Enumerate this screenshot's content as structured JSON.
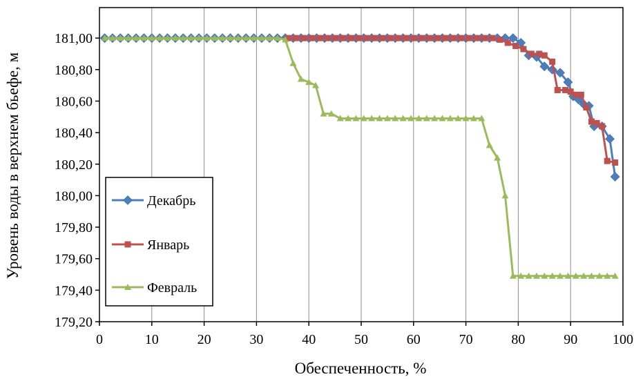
{
  "chart_data": {
    "type": "line",
    "title": "",
    "xlabel": "Обеспеченность, %",
    "ylabel": "Уровень воды в верхнем бьефе, м",
    "xlim": [
      0,
      100
    ],
    "ylim": [
      179.2,
      181.1
    ],
    "x_ticks": [
      "0",
      "10",
      "20",
      "30",
      "40",
      "50",
      "60",
      "70",
      "80",
      "90",
      "100"
    ],
    "y_ticks": [
      "179,20",
      "179,40",
      "179,60",
      "179,80",
      "180,00",
      "180,20",
      "180,40",
      "180,60",
      "180,80",
      "181,00"
    ],
    "grid": "vertical",
    "legend_position": "left-bottom",
    "series": [
      {
        "name": "Декабрь",
        "color": "#4a7ebf",
        "marker": "diamond",
        "points": [
          [
            1,
            181
          ],
          [
            2.5,
            181
          ],
          [
            4,
            181
          ],
          [
            5.5,
            181
          ],
          [
            7,
            181
          ],
          [
            8.5,
            181
          ],
          [
            10,
            181
          ],
          [
            11.5,
            181
          ],
          [
            13,
            181
          ],
          [
            14.5,
            181
          ],
          [
            16,
            181
          ],
          [
            17.5,
            181
          ],
          [
            19,
            181
          ],
          [
            20.5,
            181
          ],
          [
            22,
            181
          ],
          [
            23.5,
            181
          ],
          [
            25,
            181
          ],
          [
            26.5,
            181
          ],
          [
            28,
            181
          ],
          [
            29.5,
            181
          ],
          [
            31,
            181
          ],
          [
            32.5,
            181
          ],
          [
            34,
            181
          ],
          [
            35.5,
            181
          ],
          [
            37,
            181
          ],
          [
            38.5,
            181
          ],
          [
            40,
            181
          ],
          [
            41.5,
            181
          ],
          [
            43,
            181
          ],
          [
            44.5,
            181
          ],
          [
            46,
            181
          ],
          [
            47.5,
            181
          ],
          [
            49,
            181
          ],
          [
            50.5,
            181
          ],
          [
            52,
            181
          ],
          [
            53.5,
            181
          ],
          [
            55,
            181
          ],
          [
            56.5,
            181
          ],
          [
            58,
            181
          ],
          [
            59.5,
            181
          ],
          [
            61,
            181
          ],
          [
            62.5,
            181
          ],
          [
            64,
            181
          ],
          [
            65.5,
            181
          ],
          [
            67,
            181
          ],
          [
            68.5,
            181
          ],
          [
            70,
            181
          ],
          [
            71.5,
            181
          ],
          [
            73,
            181
          ],
          [
            74.5,
            181
          ],
          [
            76,
            181
          ],
          [
            77.5,
            181
          ],
          [
            79,
            181
          ],
          [
            80.5,
            180.97
          ],
          [
            82,
            180.89
          ],
          [
            83.5,
            180.88
          ],
          [
            85,
            180.82
          ],
          [
            86.5,
            180.8
          ],
          [
            88,
            180.78
          ],
          [
            89.5,
            180.72
          ],
          [
            90.5,
            180.63
          ],
          [
            91.5,
            180.61
          ],
          [
            92.5,
            180.58
          ],
          [
            93.5,
            180.57
          ],
          [
            94.5,
            180.44
          ],
          [
            96,
            180.44
          ],
          [
            97.5,
            180.36
          ],
          [
            98.5,
            180.12
          ]
        ]
      },
      {
        "name": "Январь",
        "color": "#c0504d",
        "marker": "square",
        "points": [
          [
            36,
            181
          ],
          [
            37.5,
            181
          ],
          [
            39,
            181
          ],
          [
            40.5,
            181
          ],
          [
            42,
            181
          ],
          [
            43.5,
            181
          ],
          [
            45,
            181
          ],
          [
            46.5,
            181
          ],
          [
            48,
            181
          ],
          [
            49.5,
            181
          ],
          [
            51,
            181
          ],
          [
            52.5,
            181
          ],
          [
            54,
            181
          ],
          [
            55.5,
            181
          ],
          [
            57,
            181
          ],
          [
            58.5,
            181
          ],
          [
            60,
            181
          ],
          [
            61.5,
            181
          ],
          [
            63,
            181
          ],
          [
            64.5,
            181
          ],
          [
            66,
            181
          ],
          [
            67.5,
            181
          ],
          [
            69,
            181
          ],
          [
            70.5,
            181
          ],
          [
            72,
            181
          ],
          [
            73.5,
            181
          ],
          [
            75,
            181
          ],
          [
            76.5,
            180.99
          ],
          [
            78,
            180.97
          ],
          [
            79.5,
            180.95
          ],
          [
            81,
            180.93
          ],
          [
            82.5,
            180.9
          ],
          [
            84,
            180.9
          ],
          [
            85,
            180.89
          ],
          [
            86.5,
            180.85
          ],
          [
            87.5,
            180.67
          ],
          [
            89,
            180.67
          ],
          [
            90,
            180.66
          ],
          [
            91,
            180.64
          ],
          [
            92,
            180.64
          ],
          [
            93,
            180.56
          ],
          [
            94,
            180.47
          ],
          [
            95,
            180.46
          ],
          [
            96,
            180.44
          ],
          [
            97,
            180.22
          ],
          [
            98.5,
            180.21
          ]
        ]
      },
      {
        "name": "Февраль",
        "color": "#9bbb59",
        "marker": "triangle",
        "points": [
          [
            1,
            181
          ],
          [
            2.5,
            181
          ],
          [
            4,
            181
          ],
          [
            5.5,
            181
          ],
          [
            7,
            181
          ],
          [
            8.5,
            181
          ],
          [
            10,
            181
          ],
          [
            11.5,
            181
          ],
          [
            13,
            181
          ],
          [
            14.5,
            181
          ],
          [
            16,
            181
          ],
          [
            17.5,
            181
          ],
          [
            19,
            181
          ],
          [
            20.5,
            181
          ],
          [
            22,
            181
          ],
          [
            23.5,
            181
          ],
          [
            25,
            181
          ],
          [
            26.5,
            181
          ],
          [
            28,
            181
          ],
          [
            29.5,
            181
          ],
          [
            31,
            181
          ],
          [
            32.5,
            181
          ],
          [
            34,
            181
          ],
          [
            35.5,
            180.99
          ],
          [
            37,
            180.84
          ],
          [
            38.5,
            180.74
          ],
          [
            40,
            180.72
          ],
          [
            41.3,
            180.7
          ],
          [
            42.8,
            180.52
          ],
          [
            44.3,
            180.52
          ],
          [
            46,
            180.49
          ],
          [
            47.5,
            180.49
          ],
          [
            49,
            180.49
          ],
          [
            50.5,
            180.49
          ],
          [
            52,
            180.49
          ],
          [
            53.5,
            180.49
          ],
          [
            55,
            180.49
          ],
          [
            56.5,
            180.49
          ],
          [
            58,
            180.49
          ],
          [
            59.5,
            180.49
          ],
          [
            61,
            180.49
          ],
          [
            62.5,
            180.49
          ],
          [
            64,
            180.49
          ],
          [
            65.5,
            180.49
          ],
          [
            67,
            180.49
          ],
          [
            68.5,
            180.49
          ],
          [
            70,
            180.49
          ],
          [
            71.5,
            180.49
          ],
          [
            73,
            180.49
          ],
          [
            74.5,
            180.32
          ],
          [
            76,
            180.24
          ],
          [
            77.5,
            180
          ],
          [
            79,
            179.49
          ],
          [
            80.5,
            179.49
          ],
          [
            82,
            179.49
          ],
          [
            83.5,
            179.49
          ],
          [
            85,
            179.49
          ],
          [
            86.5,
            179.49
          ],
          [
            88,
            179.49
          ],
          [
            89.5,
            179.49
          ],
          [
            91,
            179.49
          ],
          [
            92.5,
            179.49
          ],
          [
            94,
            179.49
          ],
          [
            95.5,
            179.49
          ],
          [
            97,
            179.49
          ],
          [
            98.5,
            179.49
          ]
        ]
      }
    ]
  }
}
